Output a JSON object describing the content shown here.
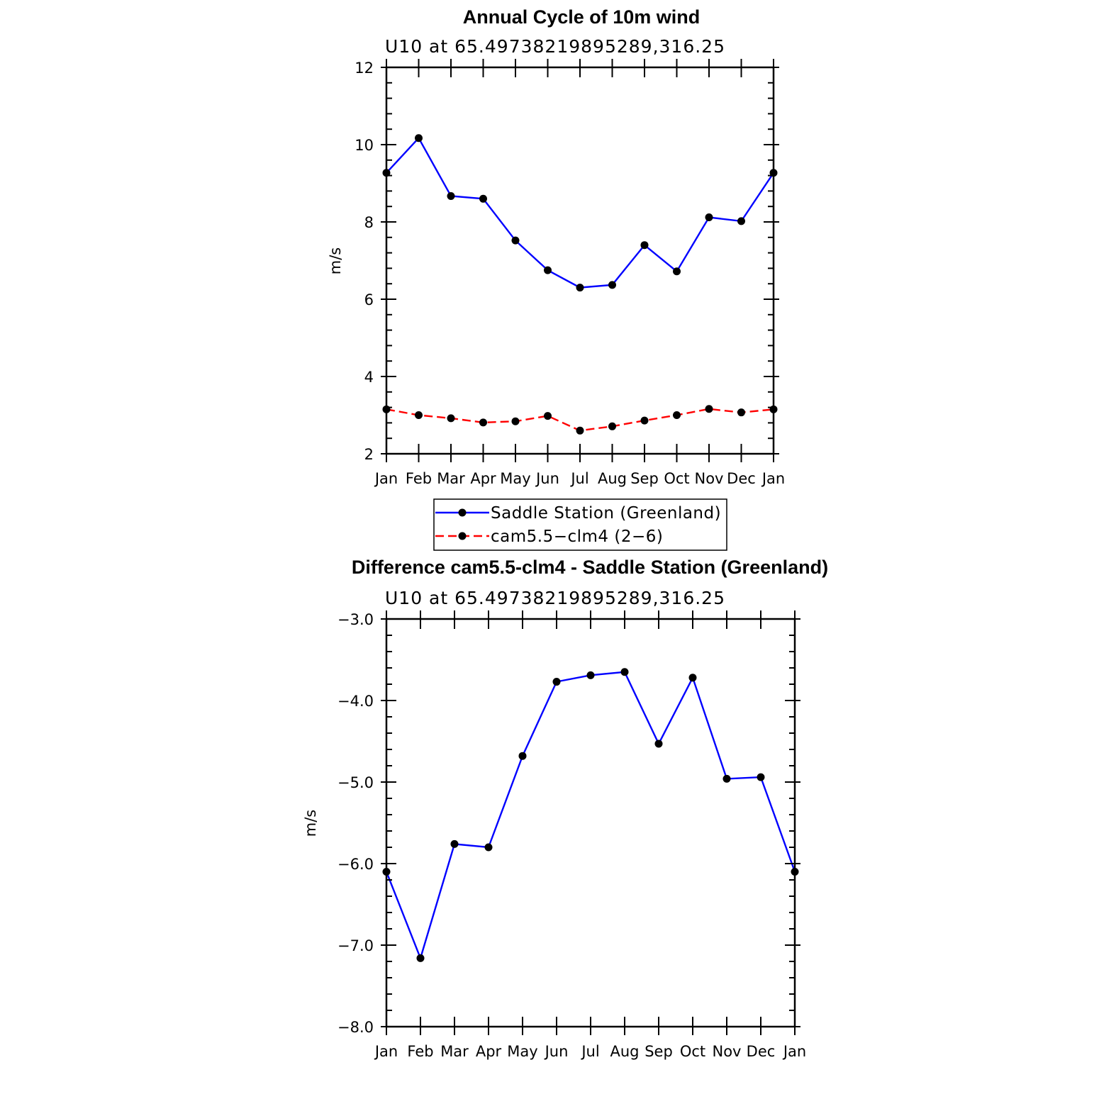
{
  "chart_data": [
    {
      "type": "line",
      "title": "Annual Cycle of 10m wind",
      "subtitle": "U10 at 65.49738219895289,316.25",
      "xlabel": "",
      "ylabel": "m/s",
      "ylim": [
        2,
        12
      ],
      "yticks": [
        "2",
        "4",
        "6",
        "8",
        "10",
        "12"
      ],
      "yticks_values": [
        2,
        4,
        6,
        8,
        10,
        12
      ],
      "categories": [
        "Jan",
        "Feb",
        "Mar",
        "Apr",
        "May",
        "Jun",
        "Jul",
        "Aug",
        "Sep",
        "Oct",
        "Nov",
        "Dec",
        "Jan"
      ],
      "series": [
        {
          "name": "Saddle Station (Greenland)",
          "color": "#0000ff",
          "dashed": false,
          "values": [
            9.27,
            10.17,
            8.67,
            8.6,
            7.52,
            6.75,
            6.3,
            6.37,
            7.4,
            6.72,
            8.12,
            8.02,
            9.27
          ]
        },
        {
          "name": "cam5.5−clm4 (2−6)",
          "color": "#ff0000",
          "dashed": true,
          "values": [
            3.15,
            3.0,
            2.92,
            2.81,
            2.84,
            2.98,
            2.6,
            2.71,
            2.86,
            3.0,
            3.16,
            3.07,
            3.15
          ]
        }
      ],
      "legend": "bottom-center"
    },
    {
      "type": "line",
      "title": "Difference cam5.5-clm4 - Saddle Station (Greenland)",
      "subtitle": "U10 at 65.49738219895289,316.25",
      "xlabel": "",
      "ylabel": "m/s",
      "ylim": [
        -8.0,
        -3.0
      ],
      "yticks": [
        "−3.0",
        "−4.0",
        "−5.0",
        "−6.0",
        "−7.0",
        "−8.0"
      ],
      "yticks_values": [
        -3.0,
        -4.0,
        -5.0,
        -6.0,
        -7.0,
        -8.0
      ],
      "categories": [
        "Jan",
        "Feb",
        "Mar",
        "Apr",
        "May",
        "Jun",
        "Jul",
        "Aug",
        "Sep",
        "Oct",
        "Nov",
        "Dec",
        "Jan"
      ],
      "series": [
        {
          "color": "#0000ff",
          "dashed": false,
          "values": [
            -6.1,
            -7.16,
            -5.76,
            -5.8,
            -4.68,
            -3.77,
            -3.69,
            -3.65,
            -4.53,
            -3.72,
            -4.96,
            -4.94,
            -6.1
          ]
        }
      ]
    }
  ]
}
